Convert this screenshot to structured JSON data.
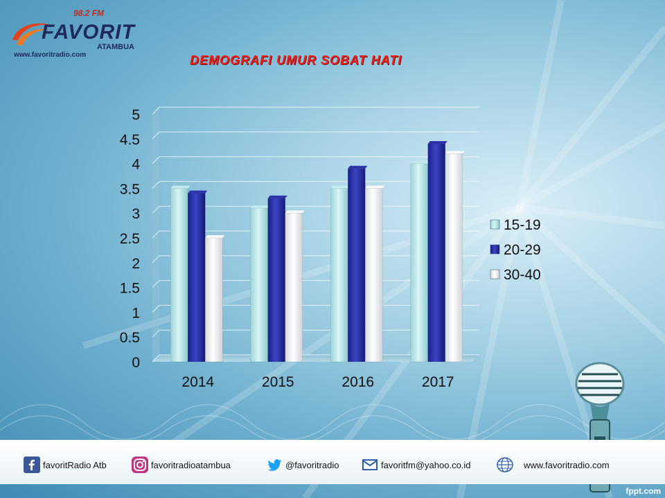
{
  "header": {
    "logo_name": "FAVORIT",
    "logo_frequency": "98.2 FM",
    "logo_city": "ATAMBUA",
    "logo_site": "www.favoritradio.com",
    "title": "DEMOGRAFI UMUR SOBAT HATI"
  },
  "chart_data": {
    "type": "bar",
    "title": "DEMOGRAFI UMUR SOBAT HATI",
    "categories": [
      "2014",
      "2015",
      "2016",
      "2017"
    ],
    "series": [
      {
        "name": "15-19",
        "color": "#bfeaee",
        "values": [
          3.5,
          3.1,
          3.5,
          4.0
        ]
      },
      {
        "name": "20-29",
        "color": "#2c33aa",
        "values": [
          3.4,
          3.3,
          3.9,
          4.4
        ]
      },
      {
        "name": "30-40",
        "color": "#f7f7f7",
        "values": [
          2.5,
          3.0,
          3.5,
          4.2
        ]
      }
    ],
    "ylim": [
      0,
      5
    ],
    "yticks": [
      "0",
      "0.5",
      "1",
      "1.5",
      "2",
      "2.5",
      "3",
      "3.5",
      "4",
      "4.5",
      "5"
    ],
    "grid": true,
    "legend": "right"
  },
  "footer": {
    "facebook": "favoritRadio Atb",
    "instagram": "favoritradioatambua",
    "twitter": "@favoritradio",
    "email": "favoritfm@yahoo.co.id",
    "website": "www.favoritradio.com",
    "icons": [
      "facebook-icon",
      "instagram-icon",
      "twitter-icon",
      "mail-icon",
      "globe-icon"
    ]
  },
  "credit": "fppt.com"
}
